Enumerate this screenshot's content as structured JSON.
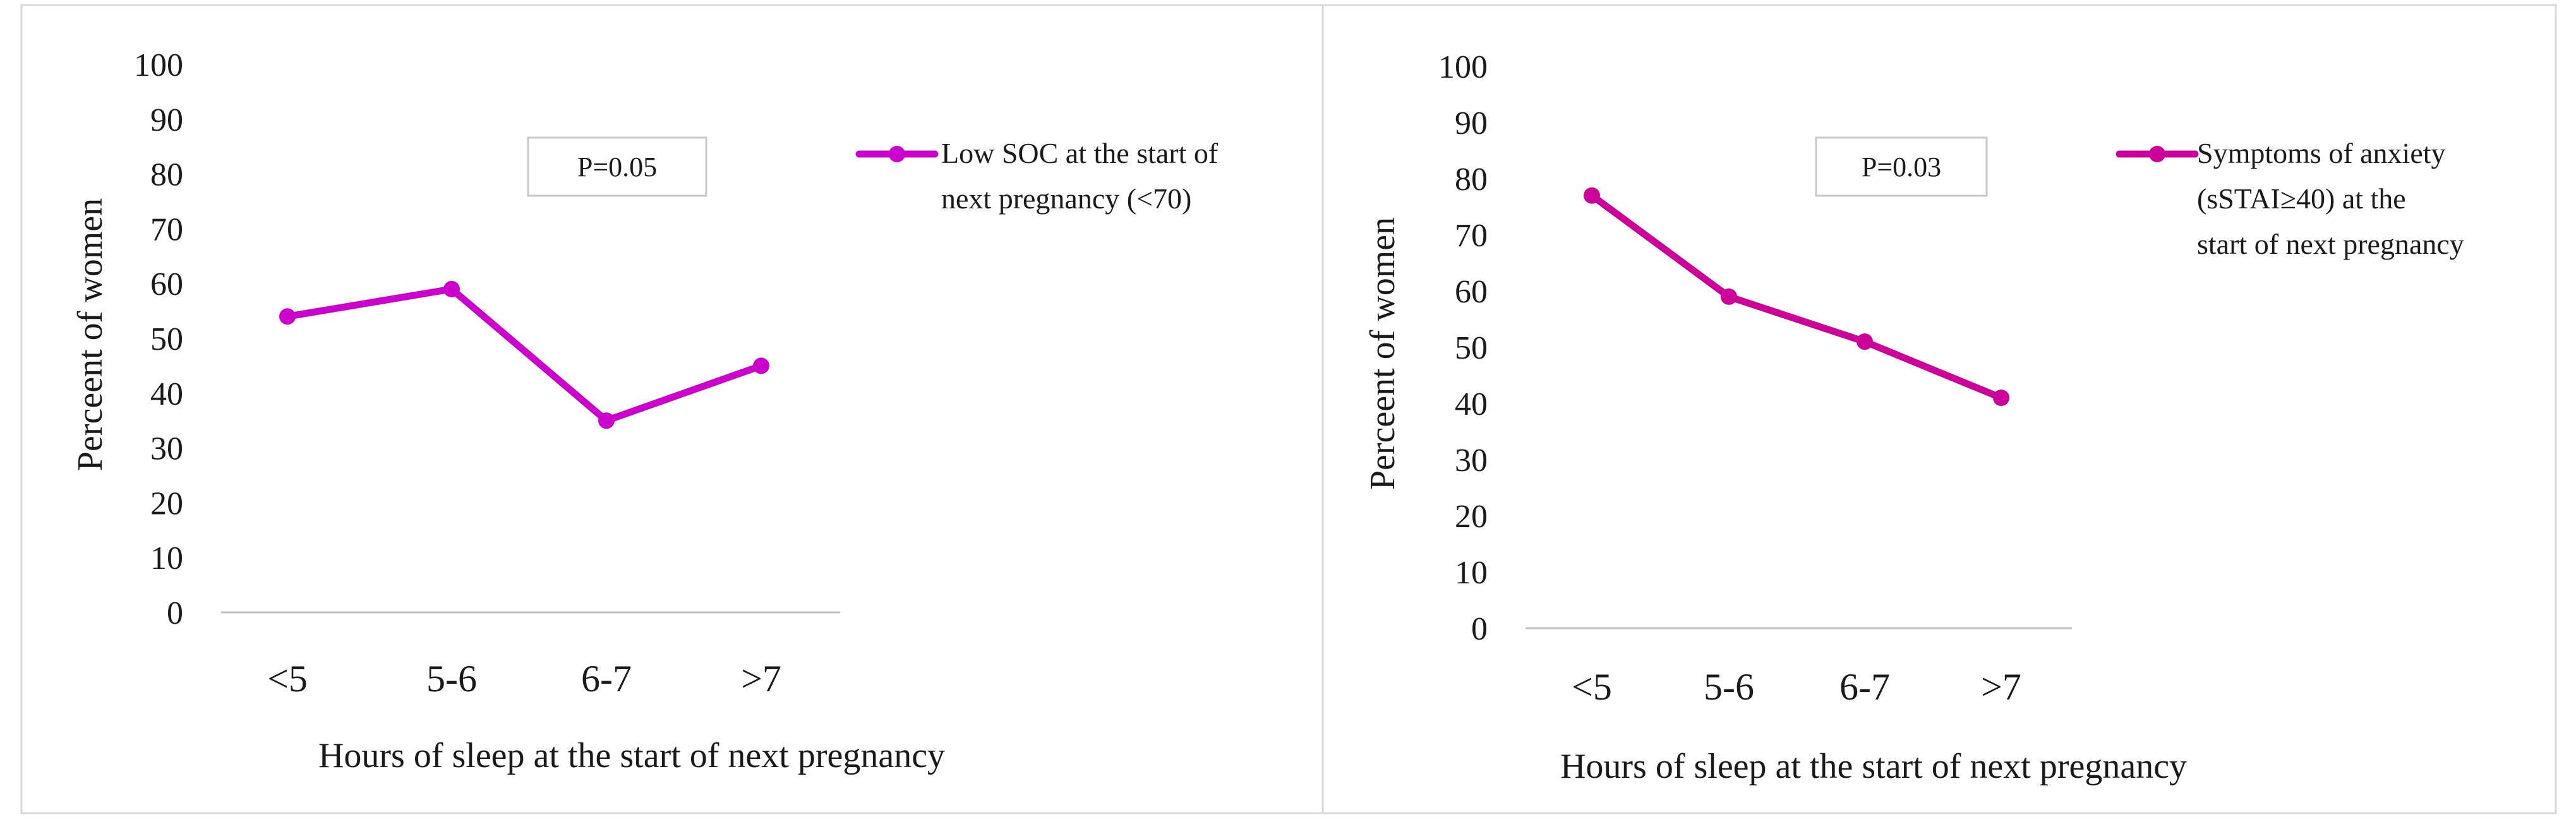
{
  "chart_data": [
    {
      "type": "line",
      "categories": [
        "<5",
        "5-6",
        "6-7",
        ">7"
      ],
      "series": [
        {
          "name": "Low SOC at the start of next pregnancy (<70)",
          "legend_lines": [
            "Low SOC at the start of",
            "next pregnancy (<70)"
          ],
          "values": [
            54,
            59,
            35,
            45
          ],
          "color": "#cc00cc"
        }
      ],
      "y_ticks": [
        "0",
        "10",
        "20",
        "30",
        "40",
        "50",
        "60",
        "70",
        "80",
        "90",
        "100"
      ],
      "ylim": [
        0,
        100
      ],
      "xlabel": "Hours of sleep at the start of next pregnancy",
      "ylabel": "Perceent of women",
      "annotation": "P=0.05"
    },
    {
      "type": "line",
      "categories": [
        "<5",
        "5-6",
        "6-7",
        ">7"
      ],
      "series": [
        {
          "name": "Symptoms of anxiety (sSTAI≥40) at the start of next pregnancy",
          "legend_lines": [
            "Symptoms of anxiety",
            "(sSTAI≥40) at the",
            "start of next pregnancy"
          ],
          "values": [
            77,
            59,
            51,
            41
          ],
          "color": "#cc0099"
        }
      ],
      "y_ticks": [
        "0",
        "10",
        "20",
        "30",
        "40",
        "50",
        "60",
        "70",
        "80",
        "90",
        "100"
      ],
      "ylim": [
        0,
        100
      ],
      "xlabel": "Hours of sleep at the start of next pregnancy",
      "ylabel": "Perceent of women",
      "annotation": "P=0.03"
    }
  ]
}
